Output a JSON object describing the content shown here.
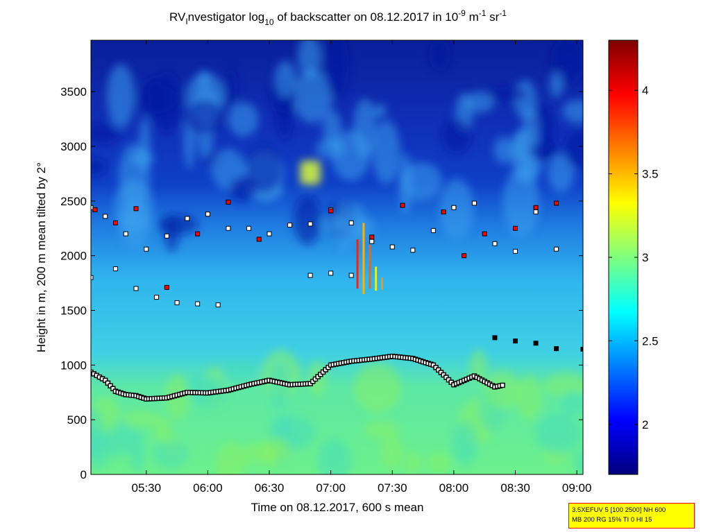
{
  "title": "RVInvestigator log10 of backscatter on 08.12.2017 in 10-9 m-1 sr-1",
  "title_parts": {
    "a": "RV",
    "a_sub": "I",
    "b": "nvestigator log",
    "b_sub": "10",
    "c": " of backscatter on 08.12.2017 in 10",
    "c_sup": "-9",
    "d": " m",
    "d_sup": "-1",
    "e": " sr",
    "e_sup": "-1"
  },
  "info_box": {
    "line1": "3.5XEFUV 5 [100 2500] NH 600",
    "line2": "MB 200 RG 15% TI 0 HI 15"
  },
  "colors": {
    "background_field": "#36c8f0",
    "upper_field": "#0a1f9a",
    "low_field": "#5ee8a6",
    "boundary_marker": "#000000",
    "cloud_marker_white": "#ffffff",
    "cloud_marker_red": "#ff0000",
    "cloud_marker_yellow": "#ffff00",
    "cloud_marker_magenta": "#ff00ff"
  },
  "chart_data": {
    "type": "heatmap",
    "title": "RVInvestigator log10 of backscatter on 08.12.2017 in 10-9 m-1 sr-1",
    "xlabel": "Time on 08.12.2017, 600 s mean",
    "ylabel": "Height in m, 200 m mean tilted by 2°",
    "xlim": [
      "05:03",
      "09:03"
    ],
    "x_ticks": [
      "05:30",
      "06:00",
      "06:30",
      "07:00",
      "07:30",
      "08:00",
      "08:30",
      "09:00"
    ],
    "ylim": [
      0,
      3970
    ],
    "y_ticks": [
      0,
      500,
      1000,
      1500,
      2000,
      2500,
      3000,
      3500
    ],
    "colorbar": {
      "limits": [
        1.7,
        4.3
      ],
      "ticks": [
        "2",
        "2.5",
        "3",
        "3.5",
        "4"
      ],
      "colormap": "jet"
    },
    "series": [
      {
        "name": "",
        "style": "black squares",
        "x": [
          "05:03",
          "05:10",
          "05:15",
          "05:20",
          "05:25",
          "05:30",
          "05:40",
          "05:50",
          "06:00",
          "06:10",
          "06:20",
          "06:30",
          "06:40",
          "06:50",
          "07:00",
          "07:10",
          "07:20",
          "07:30",
          "07:40",
          "07:50",
          "08:00",
          "08:10",
          "08:20",
          "08:25"
        ],
        "y": [
          935,
          860,
          760,
          730,
          720,
          690,
          700,
          750,
          745,
          770,
          820,
          860,
          820,
          830,
          1000,
          1035,
          1055,
          1080,
          1060,
          1000,
          820,
          900,
          800,
          820
        ]
      },
      {
        "name": "",
        "style": "black squares",
        "x": [
          "08:20",
          "08:30",
          "08:40",
          "08:50",
          "09:03"
        ],
        "y": [
          1250,
          1220,
          1200,
          1150,
          1145
        ]
      },
      {
        "name": "",
        "style": "white squares",
        "x": [
          "05:03",
          "05:10",
          "05:20",
          "05:30",
          "05:40",
          "05:50",
          "06:00",
          "06:10",
          "06:20",
          "06:30",
          "06:40",
          "06:50",
          "07:00",
          "07:10",
          "07:20",
          "07:30",
          "07:40",
          "07:50",
          "08:00",
          "08:10",
          "08:20",
          "08:30",
          "08:40",
          "08:50"
        ],
        "y": [
          2440,
          2360,
          2200,
          2060,
          2180,
          2340,
          2380,
          2250,
          2250,
          2200,
          2280,
          2290,
          2420,
          2300,
          2130,
          2080,
          2050,
          2230,
          2440,
          2480,
          2110,
          2040,
          2400,
          2060
        ]
      },
      {
        "name": "",
        "style": "white squares",
        "x": [
          "05:03",
          "05:15",
          "05:25",
          "05:35",
          "05:45",
          "05:55",
          "06:05",
          "06:50",
          "07:00",
          "07:10"
        ],
        "y": [
          1800,
          1880,
          1700,
          1620,
          1570,
          1560,
          1550,
          1820,
          1840,
          1820
        ]
      },
      {
        "name": "",
        "style": "red squares",
        "x": [
          "05:05",
          "05:15",
          "05:25",
          "05:40",
          "05:55",
          "06:10",
          "06:25",
          "07:00",
          "07:20",
          "07:35",
          "07:55",
          "08:05",
          "08:15",
          "08:30",
          "08:40",
          "08:50"
        ],
        "y": [
          2420,
          2300,
          2430,
          1710,
          2200,
          2490,
          2150,
          2410,
          2170,
          2460,
          2400,
          2000,
          2200,
          2250,
          2440,
          2480
        ]
      }
    ]
  }
}
